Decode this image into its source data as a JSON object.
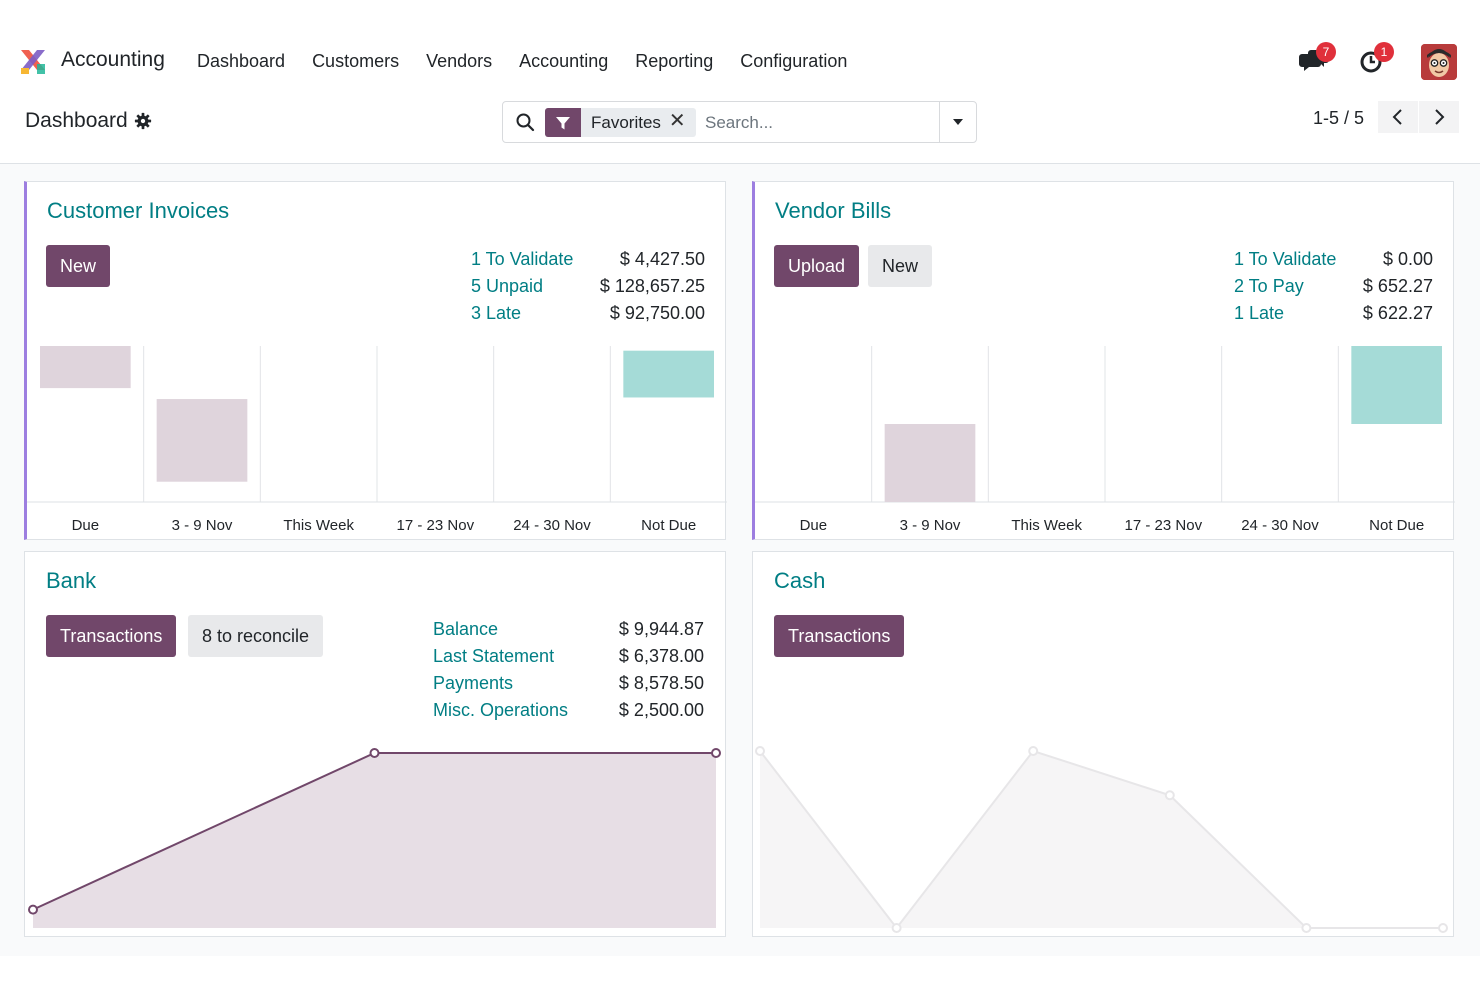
{
  "navbar": {
    "app_name": "Accounting",
    "menu": [
      "Dashboard",
      "Customers",
      "Vendors",
      "Accounting",
      "Reporting",
      "Configuration"
    ],
    "messages_badge": "7",
    "activities_badge": "1",
    "icons": [
      "chat-icon",
      "clock-icon",
      "avatar"
    ]
  },
  "control_panel": {
    "breadcrumb": "Dashboard",
    "search": {
      "facet_label": "Favorites",
      "facet_remove": "✕",
      "placeholder": "Search..."
    },
    "pager": "1-5 / 5"
  },
  "colors": {
    "brand": "#71476a",
    "link": "#017e84",
    "accent_border": "#9d7ee0",
    "bar_past": "#dfd4dc",
    "bar_future": "#a5dbd7"
  },
  "cards": {
    "customer_invoices": {
      "title": "Customer Invoices",
      "new_label": "New",
      "stats": [
        {
          "label": "1 To Validate",
          "value": "$ 4,427.50"
        },
        {
          "label": "5 Unpaid",
          "value": "$ 128,657.25"
        },
        {
          "label": "3 Late",
          "value": "$ 92,750.00"
        }
      ]
    },
    "vendor_bills": {
      "title": "Vendor Bills",
      "upload_label": "Upload",
      "new_label": "New",
      "stats": [
        {
          "label": "1 To Validate",
          "value": "$ 0.00"
        },
        {
          "label": "2 To Pay",
          "value": "$ 652.27"
        },
        {
          "label": "1 Late",
          "value": "$ 622.27"
        }
      ]
    },
    "bank": {
      "title": "Bank",
      "transactions_label": "Transactions",
      "reconcile_label": "8 to reconcile",
      "stats": [
        {
          "label": "Balance",
          "value": "$ 9,944.87"
        },
        {
          "label": "Last Statement",
          "value": "$ 6,378.00"
        },
        {
          "label": "Payments",
          "value": "$ 8,578.50"
        },
        {
          "label": "Misc. Operations",
          "value": "$ 2,500.00"
        }
      ]
    },
    "cash": {
      "title": "Cash",
      "transactions_label": "Transactions"
    }
  },
  "chart_data": [
    {
      "type": "bar",
      "chart": "customer_invoices",
      "categories": [
        "Due",
        "3 - 9 Nov",
        "This Week",
        "17 - 23 Nov",
        "24 - 30 Nov",
        "Not Due"
      ],
      "values": [
        0.27,
        0.53,
        0,
        0,
        0,
        0.3
      ],
      "floating_base": [
        0.73,
        0.13,
        0,
        0,
        0,
        0.67
      ],
      "bar_kind": [
        "past",
        "past",
        "past",
        "future",
        "future",
        "future"
      ]
    },
    {
      "type": "bar",
      "chart": "vendor_bills",
      "categories": [
        "Due",
        "3 - 9 Nov",
        "This Week",
        "17 - 23 Nov",
        "24 - 30 Nov",
        "Not Due"
      ],
      "values": [
        0,
        0.5,
        0,
        0,
        0,
        0.5
      ],
      "floating_base": [
        0,
        0,
        0,
        0,
        0,
        0.5
      ],
      "bar_kind": [
        "past",
        "past",
        "past",
        "future",
        "future",
        "future"
      ]
    },
    {
      "type": "area",
      "chart": "bank",
      "x": [
        0,
        1,
        2
      ],
      "y": [
        0.1,
        1,
        1
      ]
    },
    {
      "type": "area",
      "chart": "cash",
      "x": [
        0,
        1,
        2,
        3,
        4,
        5
      ],
      "y": [
        1,
        0,
        1,
        0.75,
        0,
        0
      ],
      "placeholder": true
    }
  ]
}
